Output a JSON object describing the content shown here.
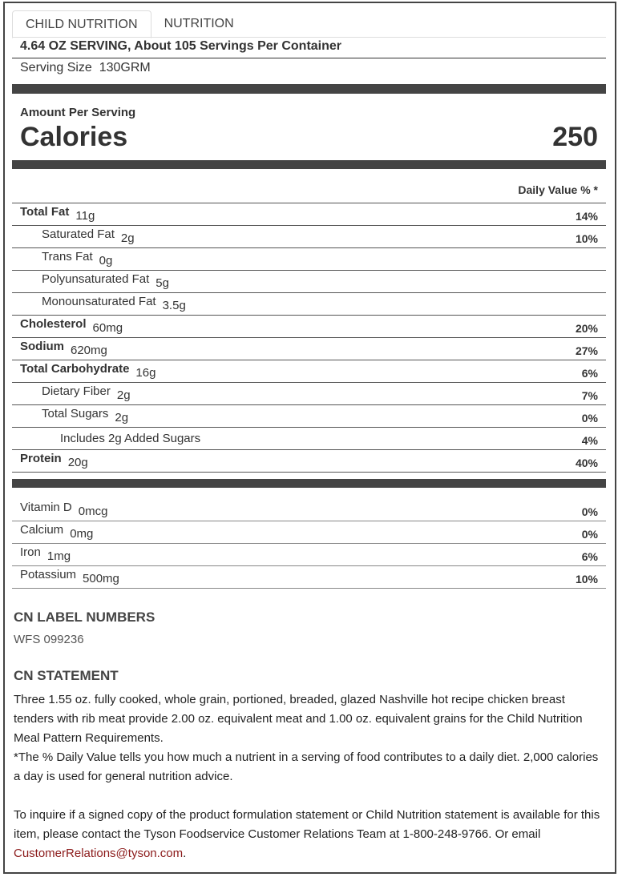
{
  "tabs": [
    "CHILD NUTRITION",
    "NUTRITION"
  ],
  "serving_header": "4.64 OZ SERVING, About 105 Servings Per Container",
  "serving_size_label": "Serving Size",
  "serving_size": "130GRM",
  "amount_per_serving": "Amount Per Serving",
  "calories_label": "Calories",
  "calories": "250",
  "daily_value_header": "Daily Value % *",
  "nutrients": [
    {
      "name": "Total Fat",
      "amount": "11g",
      "dv": "14%"
    },
    {
      "name": "Saturated Fat",
      "amount": "2g",
      "dv": "10%"
    },
    {
      "name": "Trans Fat",
      "amount": "0g",
      "dv": ""
    },
    {
      "name": "Polyunsaturated Fat",
      "amount": "5g",
      "dv": ""
    },
    {
      "name": "Monounsaturated Fat",
      "amount": "3.5g",
      "dv": ""
    },
    {
      "name": "Cholesterol",
      "amount": "60mg",
      "dv": "20%"
    },
    {
      "name": "Sodium",
      "amount": "620mg",
      "dv": "27%"
    },
    {
      "name": "Total Carbohydrate",
      "amount": "16g",
      "dv": "6%"
    },
    {
      "name": "Dietary Fiber",
      "amount": "2g",
      "dv": "7%"
    },
    {
      "name": "Total Sugars",
      "amount": "2g",
      "dv": "0%"
    },
    {
      "name": "Includes 2g Added Sugars",
      "amount": "",
      "dv": "4%"
    },
    {
      "name": "Protein",
      "amount": "20g",
      "dv": "40%"
    }
  ],
  "vitamins": [
    {
      "name": "Vitamin D",
      "amount": "0mcg",
      "dv": "0%"
    },
    {
      "name": "Calcium",
      "amount": "0mg",
      "dv": "0%"
    },
    {
      "name": "Iron",
      "amount": "1mg",
      "dv": "6%"
    },
    {
      "name": "Potassium",
      "amount": "500mg",
      "dv": "10%"
    }
  ],
  "cn_label_heading": "CN LABEL NUMBERS",
  "cn_label": "WFS 099236",
  "cn_statement_heading": "CN STATEMENT",
  "cn_statement": "Three 1.55 oz. fully cooked, whole grain, portioned, breaded, glazed Nashville hot recipe chicken breast tenders with rib meat provide 2.00 oz. equivalent meat and 1.00 oz. equivalent grains for the Child Nutrition Meal Pattern Requirements.",
  "dv_note": "*The % Daily Value tells you how much a nutrient in a serving of food contributes to a daily diet. 2,000 calories a day is used for general nutrition advice.",
  "inquire": "To inquire if a signed copy of the product formulation statement or Child Nutrition statement is available for this item, please contact the Tyson Foodservice Customer Relations Team at 1-800-248-9766. Or email",
  "email": "CustomerRelations@tyson.com",
  "period": "."
}
